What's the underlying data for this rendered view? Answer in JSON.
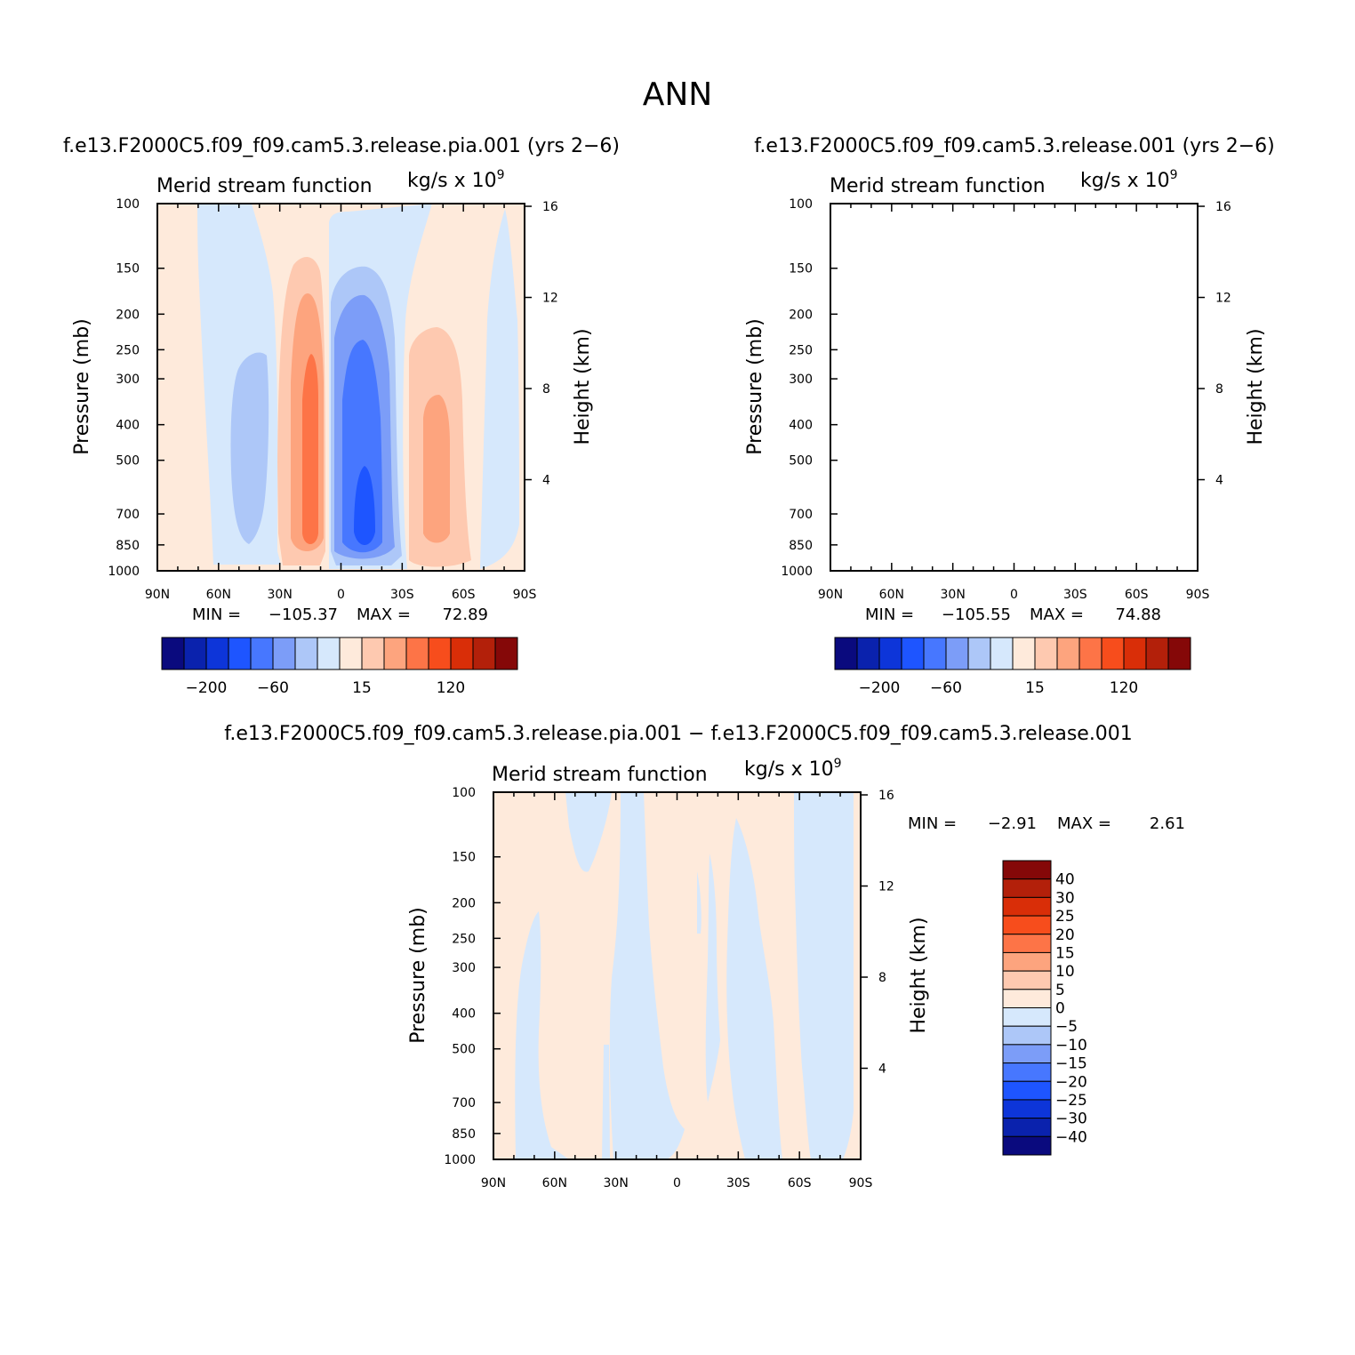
{
  "figure": {
    "title": "ANN"
  },
  "colors": {
    "palette": [
      "#0a0a7e",
      "#0a22ad",
      "#0d35d9",
      "#1e55ff",
      "#4777ff",
      "#7c9df8",
      "#adc7f8",
      "#d6e8fc",
      "#feeadb",
      "#fec9b0",
      "#fda47e",
      "#fd7447",
      "#f74d1c",
      "#d92e08",
      "#b3200a",
      "#850808"
    ]
  },
  "chart_data": [
    {
      "type": "contour",
      "title": "f.e13.F2000C5.f09_f09.cam5.3.release.pia.001 (yrs 2−6)",
      "subtitle_left": "Merid stream function",
      "subtitle_right": "kg/s x 10",
      "subtitle_exponent": "9",
      "ylabel": "Pressure (mb)",
      "ylabel_right": "Height (km)",
      "x_ticks": [
        "90N",
        "60N",
        "30N",
        "0",
        "30S",
        "60S",
        "90S"
      ],
      "xlim": [
        90,
        -90
      ],
      "y_ticks": [
        100,
        150,
        200,
        250,
        300,
        400,
        500,
        700,
        850,
        1000
      ],
      "ylim": [
        1000,
        100
      ],
      "y_scale": "log",
      "height_ticks": [
        4,
        8,
        12,
        16
      ],
      "min_label": "MIN =",
      "min_value": "−105.37",
      "max_label": "MAX =",
      "max_value": "72.89",
      "colorbar_labels": [
        "−200",
        "−60",
        "15",
        "120"
      ],
      "cells": [
        {
          "lat": 70,
          "plev": 500,
          "level": -5
        },
        {
          "lat": 40,
          "plev": 450,
          "level": -15
        },
        {
          "lat": 14,
          "plev": 500,
          "level": 60
        },
        {
          "lat": -10,
          "plev": 600,
          "level": -105
        },
        {
          "lat": -46,
          "plev": 500,
          "level": 40
        },
        {
          "lat": -80,
          "plev": 400,
          "level": -5
        }
      ]
    },
    {
      "type": "contour",
      "title": "f.e13.F2000C5.f09_f09.cam5.3.release.001 (yrs 2−6)",
      "subtitle_left": "Merid stream function",
      "subtitle_right": "kg/s x 10",
      "subtitle_exponent": "9",
      "ylabel": "Pressure (mb)",
      "ylabel_right": "Height (km)",
      "x_ticks": [
        "90N",
        "60N",
        "30N",
        "0",
        "30S",
        "60S",
        "90S"
      ],
      "xlim": [
        90,
        -90
      ],
      "y_ticks": [
        100,
        150,
        200,
        250,
        300,
        400,
        500,
        700,
        850,
        1000
      ],
      "ylim": [
        1000,
        100
      ],
      "y_scale": "log",
      "height_ticks": [
        4,
        8,
        12,
        16
      ],
      "min_label": "MIN =",
      "min_value": "−105.55",
      "max_label": "MAX =",
      "max_value": "74.88",
      "colorbar_labels": [
        "−200",
        "−60",
        "15",
        "120"
      ]
    },
    {
      "type": "contour",
      "title": "f.e13.F2000C5.f09_f09.cam5.3.release.pia.001 − f.e13.F2000C5.f09_f09.cam5.3.release.001",
      "subtitle_left": "Merid stream function",
      "subtitle_right": "kg/s x 10",
      "subtitle_exponent": "9",
      "ylabel": "Pressure (mb)",
      "ylabel_right": "Height (km)",
      "x_ticks": [
        "90N",
        "60N",
        "30N",
        "0",
        "30S",
        "60S",
        "90S"
      ],
      "xlim": [
        90,
        -90
      ],
      "y_ticks": [
        100,
        150,
        200,
        250,
        300,
        400,
        500,
        700,
        850,
        1000
      ],
      "ylim": [
        1000,
        100
      ],
      "y_scale": "log",
      "height_ticks": [
        4,
        8,
        12,
        16
      ],
      "min_label": "MIN =",
      "min_value": "−2.91",
      "max_label": "MAX =",
      "max_value": "2.61",
      "colorbar_labels": [
        "40",
        "30",
        "25",
        "20",
        "15",
        "10",
        "5",
        "0",
        "−5",
        "−10",
        "−15",
        "−20",
        "−25",
        "−30",
        "−40"
      ]
    }
  ]
}
